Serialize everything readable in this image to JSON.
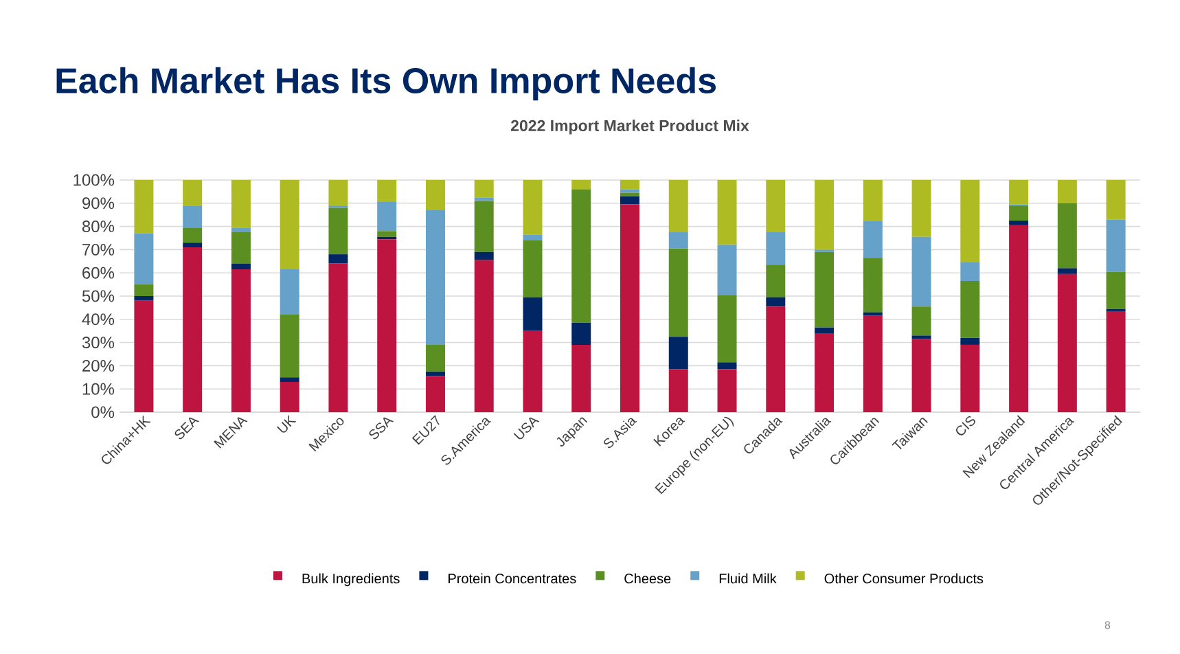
{
  "chart_data": {
    "type": "bar",
    "stacked": true,
    "title": "2022 Import Market Product Mix",
    "annotations": [
      "Each Market Has Its Own Import Needs",
      "8"
    ],
    "categories": [
      "China+HK",
      "SEA",
      "MENA",
      "UK",
      "Mexico",
      "SSA",
      "EU27",
      "S.America",
      "USA",
      "Japan",
      "S.Asia",
      "Korea",
      "Europe (non-EU)",
      "Canada",
      "Australia",
      "Caribbean",
      "Taiwan",
      "CIS",
      "New Zealand",
      "Central America",
      "Other/Not-Specified"
    ],
    "series": [
      {
        "name": "Bulk Ingredients",
        "color": "#be1540",
        "values": [
          48,
          71,
          61.5,
          13,
          64,
          74.5,
          15.5,
          65.5,
          35,
          29,
          89.5,
          18.5,
          18.5,
          45.5,
          34,
          41.5,
          31.5,
          29,
          80.5,
          59.5,
          43.5
        ]
      },
      {
        "name": "Protein Concentrates",
        "color": "#002664",
        "values": [
          2,
          2,
          2.5,
          2,
          4,
          1,
          2,
          3.5,
          14.5,
          9.5,
          3.5,
          14,
          3,
          4,
          2.5,
          1.5,
          1.5,
          3,
          2,
          2.5,
          1
        ]
      },
      {
        "name": "Cheese",
        "color": "#5b8f22",
        "values": [
          5,
          6.5,
          13.5,
          27,
          20,
          2.5,
          11.5,
          22,
          24.5,
          57.5,
          1.5,
          38,
          29,
          14,
          32.5,
          23.5,
          12.5,
          24.5,
          6.5,
          28,
          16
        ]
      },
      {
        "name": "Fluid Milk",
        "color": "#65a1c8",
        "values": [
          22,
          9.5,
          2,
          19.5,
          1,
          12.5,
          58,
          1.5,
          2.5,
          0,
          1.5,
          7,
          21.5,
          14,
          1,
          16,
          30,
          8,
          0.5,
          0,
          22.5
        ]
      },
      {
        "name": "Other Consumer Products",
        "color": "#afbb22",
        "values": [
          23,
          11,
          20.5,
          38.5,
          11,
          9.5,
          13,
          7.5,
          23.5,
          4,
          4,
          22.5,
          28,
          22.5,
          30,
          17.5,
          24.5,
          35.5,
          10.5,
          10,
          17
        ]
      }
    ],
    "ylim": [
      0,
      100
    ],
    "yticks": [
      {
        "value": 0,
        "label": "0%"
      },
      {
        "value": 10,
        "label": "10%"
      },
      {
        "value": 20,
        "label": "20%"
      },
      {
        "value": 30,
        "label": "30%"
      },
      {
        "value": 40,
        "label": "40%"
      },
      {
        "value": 50,
        "label": "50%"
      },
      {
        "value": 60,
        "label": "60%"
      },
      {
        "value": 70,
        "label": "70%"
      },
      {
        "value": 80,
        "label": "80%"
      },
      {
        "value": 90,
        "label": "90%"
      },
      {
        "value": 100,
        "label": "100%"
      }
    ],
    "grid": "y",
    "legend": "bottom"
  }
}
